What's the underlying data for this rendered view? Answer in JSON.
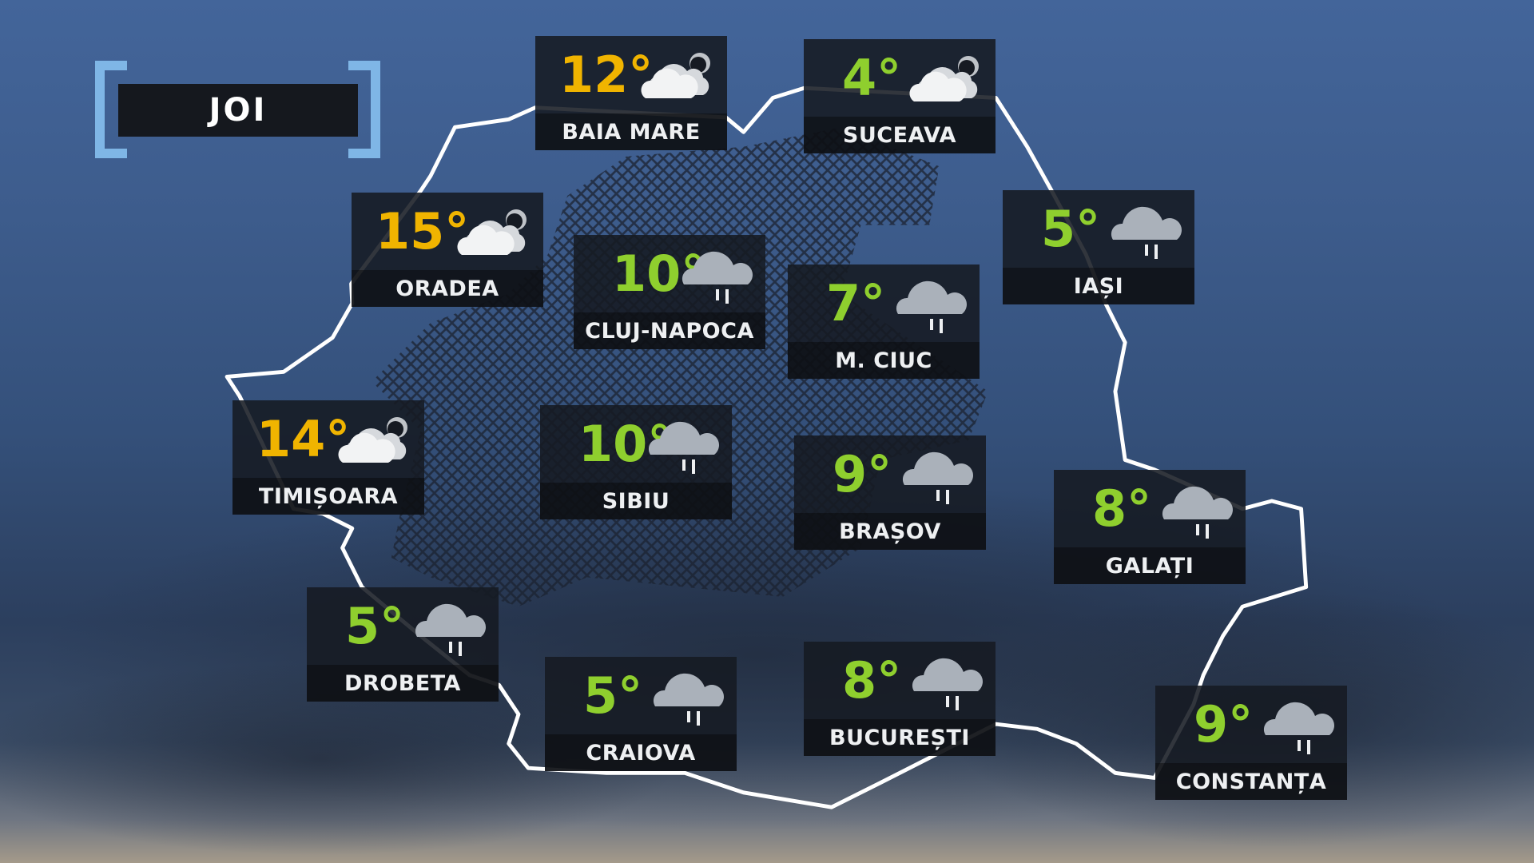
{
  "day_label": "JOI",
  "colors": {
    "warm_temp": "#f0b400",
    "cold_temp": "#8fcf2e",
    "bracket": "#7fb6e6",
    "card_bg": "#161a22"
  },
  "cities": [
    {
      "name": "BAIA MARE",
      "temp": "12°",
      "icon": "partly-cloudy-night-icon",
      "tone": "warm"
    },
    {
      "name": "SUCEAVA",
      "temp": "4°",
      "icon": "partly-cloudy-night-icon",
      "tone": "cold"
    },
    {
      "name": "ORADEA",
      "temp": "15°",
      "icon": "partly-cloudy-night-icon",
      "tone": "warm"
    },
    {
      "name": "CLUJ-NAPOCA",
      "temp": "10°",
      "icon": "rain-icon",
      "tone": "cold"
    },
    {
      "name": "IAȘI",
      "temp": "5°",
      "icon": "rain-icon",
      "tone": "cold"
    },
    {
      "name": "M. CIUC",
      "temp": "7°",
      "icon": "rain-icon",
      "tone": "cold"
    },
    {
      "name": "TIMIȘOARA",
      "temp": "14°",
      "icon": "partly-cloudy-night-icon",
      "tone": "warm"
    },
    {
      "name": "SIBIU",
      "temp": "10°",
      "icon": "rain-icon",
      "tone": "cold"
    },
    {
      "name": "BRAȘOV",
      "temp": "9°",
      "icon": "rain-icon",
      "tone": "cold"
    },
    {
      "name": "GALAȚI",
      "temp": "8°",
      "icon": "rain-icon",
      "tone": "cold"
    },
    {
      "name": "DROBETA",
      "temp": "5°",
      "icon": "rain-icon",
      "tone": "cold"
    },
    {
      "name": "CRAIOVA",
      "temp": "5°",
      "icon": "rain-icon",
      "tone": "cold"
    },
    {
      "name": "BUCUREȘTI",
      "temp": "8°",
      "icon": "rain-icon",
      "tone": "cold"
    },
    {
      "name": "CONSTANȚA",
      "temp": "9°",
      "icon": "rain-icon",
      "tone": "cold"
    }
  ]
}
